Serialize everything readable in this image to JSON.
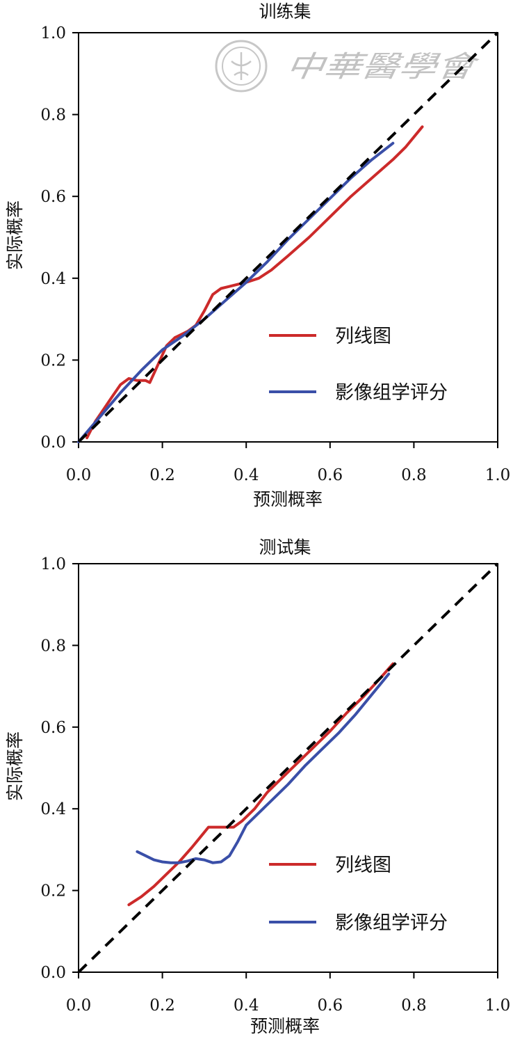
{
  "colors": {
    "nomogram": "#cc2a2a",
    "radiomics": "#3a4fa8",
    "reference": "#000000",
    "axis": "#000000"
  },
  "watermark": {
    "text": "中華醫學會"
  },
  "chart_data": [
    {
      "type": "line",
      "title": "训练集",
      "xlabel": "预测概率",
      "ylabel": "实际概率",
      "xlim": [
        0,
        1
      ],
      "ylim": [
        0,
        1
      ],
      "xticks": [
        "0.0",
        "0.2",
        "0.4",
        "0.6",
        "0.8",
        "1.0"
      ],
      "yticks": [
        "0.0",
        "0.2",
        "0.4",
        "0.6",
        "0.8",
        "1.0"
      ],
      "grid": false,
      "legend_position": "lower-right",
      "reference_line": {
        "x": [
          0,
          1
        ],
        "y": [
          0,
          1
        ],
        "style": "dashed"
      },
      "series": [
        {
          "name": "列线图",
          "color_key": "nomogram",
          "x": [
            0.02,
            0.04,
            0.06,
            0.08,
            0.1,
            0.12,
            0.14,
            0.16,
            0.17,
            0.19,
            0.21,
            0.23,
            0.26,
            0.28,
            0.3,
            0.32,
            0.34,
            0.36,
            0.38,
            0.4,
            0.43,
            0.46,
            0.5,
            0.55,
            0.6,
            0.65,
            0.7,
            0.75,
            0.78,
            0.82
          ],
          "y": [
            0.01,
            0.05,
            0.08,
            0.11,
            0.14,
            0.155,
            0.15,
            0.15,
            0.145,
            0.19,
            0.235,
            0.255,
            0.27,
            0.285,
            0.32,
            0.36,
            0.375,
            0.38,
            0.385,
            0.39,
            0.4,
            0.42,
            0.455,
            0.5,
            0.55,
            0.6,
            0.645,
            0.69,
            0.72,
            0.77
          ]
        },
        {
          "name": "影像组学评分",
          "color_key": "radiomics",
          "x": [
            0.0,
            0.05,
            0.1,
            0.15,
            0.2,
            0.25,
            0.3,
            0.35,
            0.4,
            0.45,
            0.5,
            0.55,
            0.6,
            0.65,
            0.7,
            0.75
          ],
          "y": [
            0.0,
            0.06,
            0.12,
            0.175,
            0.225,
            0.26,
            0.3,
            0.345,
            0.39,
            0.44,
            0.495,
            0.545,
            0.595,
            0.645,
            0.69,
            0.73
          ]
        }
      ]
    },
    {
      "type": "line",
      "title": "测试集",
      "xlabel": "预测概率",
      "ylabel": "实际概率",
      "xlim": [
        0,
        1
      ],
      "ylim": [
        0,
        1
      ],
      "xticks": [
        "0.0",
        "0.2",
        "0.4",
        "0.6",
        "0.8",
        "1.0"
      ],
      "yticks": [
        "0.0",
        "0.2",
        "0.4",
        "0.6",
        "0.8",
        "1.0"
      ],
      "grid": false,
      "legend_position": "lower-right",
      "reference_line": {
        "x": [
          0,
          1
        ],
        "y": [
          0,
          1
        ],
        "style": "dashed"
      },
      "series": [
        {
          "name": "列线图",
          "color_key": "nomogram",
          "x": [
            0.12,
            0.15,
            0.18,
            0.21,
            0.24,
            0.27,
            0.29,
            0.31,
            0.33,
            0.35,
            0.37,
            0.39,
            0.42,
            0.45,
            0.48,
            0.52,
            0.56,
            0.6,
            0.64,
            0.68,
            0.72,
            0.75
          ],
          "y": [
            0.165,
            0.185,
            0.21,
            0.24,
            0.27,
            0.305,
            0.33,
            0.355,
            0.355,
            0.355,
            0.355,
            0.37,
            0.4,
            0.44,
            0.47,
            0.51,
            0.55,
            0.59,
            0.635,
            0.675,
            0.72,
            0.755
          ]
        },
        {
          "name": "影像组学评分",
          "color_key": "radiomics",
          "x": [
            0.14,
            0.16,
            0.18,
            0.2,
            0.22,
            0.24,
            0.26,
            0.28,
            0.3,
            0.32,
            0.34,
            0.36,
            0.38,
            0.4,
            0.43,
            0.46,
            0.5,
            0.54,
            0.58,
            0.62,
            0.66,
            0.7,
            0.74
          ],
          "y": [
            0.295,
            0.285,
            0.275,
            0.27,
            0.268,
            0.268,
            0.272,
            0.278,
            0.275,
            0.268,
            0.27,
            0.285,
            0.32,
            0.36,
            0.39,
            0.42,
            0.46,
            0.505,
            0.545,
            0.585,
            0.63,
            0.68,
            0.73
          ]
        }
      ]
    }
  ]
}
